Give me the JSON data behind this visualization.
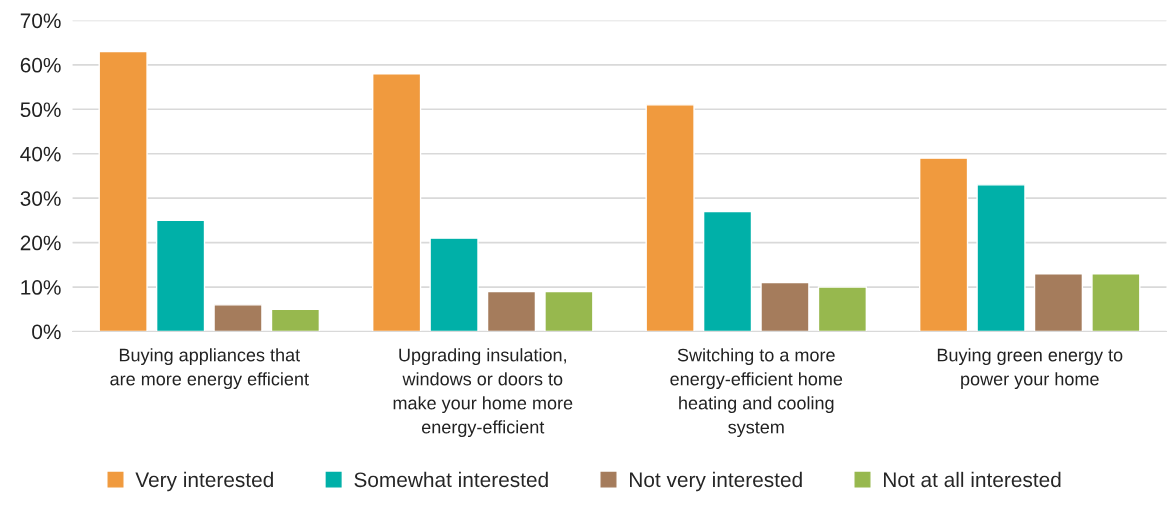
{
  "chart_data": {
    "type": "bar",
    "categories": [
      "Buying appliances that\nare more energy efficient",
      "Upgrading insulation,\nwindows or doors to\nmake your home more\nenergy-efficient",
      "Switching to a more\nenergy-efficient home\nheating and cooling\nsystem",
      "Buying green energy to\npower your home"
    ],
    "series": [
      {
        "name": "Very interested",
        "color": "#f09a3e",
        "values": [
          63,
          58,
          51,
          39
        ]
      },
      {
        "name": "Somewhat interested",
        "color": "#00b0a8",
        "values": [
          25,
          21,
          27,
          33
        ]
      },
      {
        "name": "Not very interested",
        "color": "#a57c5c",
        "values": [
          6,
          9,
          11,
          13
        ]
      },
      {
        "name": "Not at all interested",
        "color": "#97b84e",
        "values": [
          5,
          9,
          10,
          13
        ]
      }
    ],
    "ylim": [
      0,
      70
    ],
    "yticks": [
      {
        "value": 0,
        "label": "0%"
      },
      {
        "value": 10,
        "label": "10%"
      },
      {
        "value": 20,
        "label": "20%"
      },
      {
        "value": 30,
        "label": "30%"
      },
      {
        "value": 40,
        "label": "40%"
      },
      {
        "value": 50,
        "label": "50%"
      },
      {
        "value": 60,
        "label": "60%"
      },
      {
        "value": 70,
        "label": "70%"
      }
    ],
    "grid": "y",
    "legend": "bottom"
  }
}
